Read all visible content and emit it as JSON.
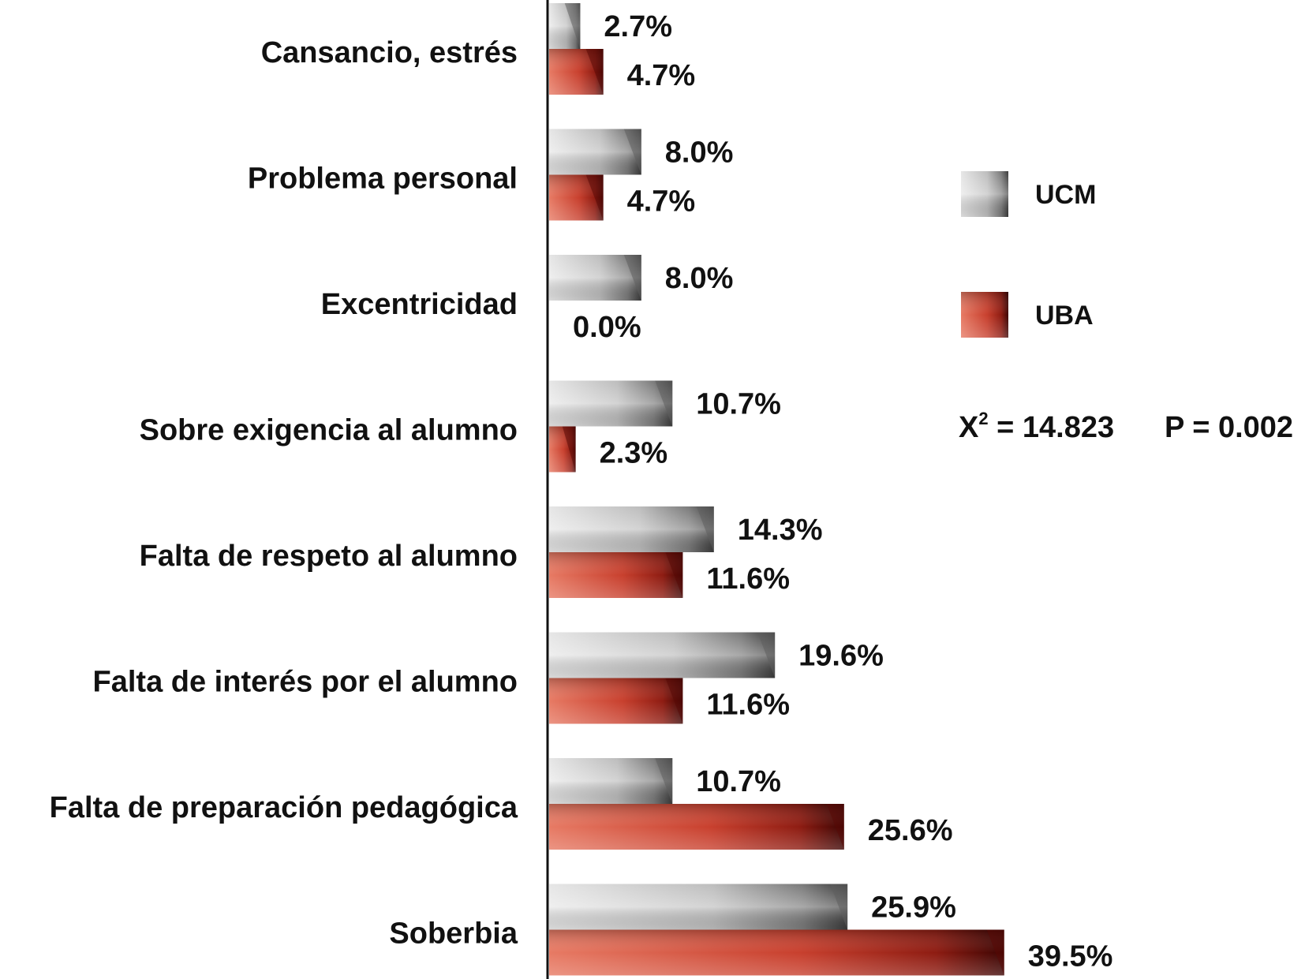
{
  "chart_data": {
    "type": "bar",
    "orientation": "horizontal",
    "categories": [
      "Cansancio, estrés",
      "Problema personal",
      "Excentricidad",
      "Sobre exigencia al alumno",
      "Falta de respeto al alumno",
      "Falta de interés por el alumno",
      "Falta de preparación pedagógica",
      "Soberbia"
    ],
    "series": [
      {
        "name": "UCM",
        "color": "#b8b8b8",
        "values": [
          2.7,
          8.0,
          8.0,
          10.7,
          14.3,
          19.6,
          10.7,
          25.9
        ],
        "labels": [
          "2.7%",
          "8.0%",
          "8.0%",
          "10.7%",
          "14.3%",
          "19.6%",
          "10.7%",
          "25.9%"
        ]
      },
      {
        "name": "UBA",
        "color": "#c0392b",
        "values": [
          4.7,
          4.7,
          0.0,
          2.3,
          11.6,
          11.6,
          25.6,
          39.5
        ],
        "labels": [
          "4.7%",
          "4.7%",
          "0.0%",
          "2.3%",
          "11.6%",
          "11.6%",
          "25.6%",
          "39.5%"
        ]
      }
    ],
    "xlim": [
      0,
      40
    ],
    "grid": false,
    "legend_position": "right",
    "annotation": {
      "chi_symbol": "X",
      "chi_exponent": "2",
      "chi_text": " = 14.823",
      "p_text": "P = 0.002"
    }
  }
}
